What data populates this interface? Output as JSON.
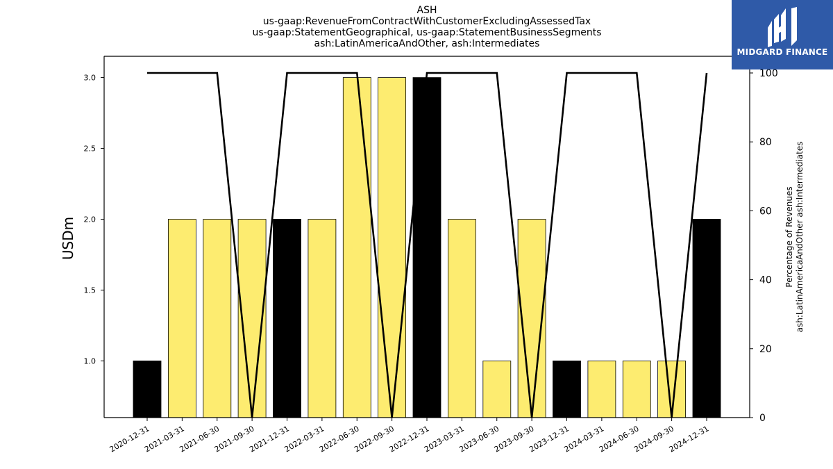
{
  "title_lines": [
    "ASH",
    "us-gaap:RevenueFromContractWithCustomerExcludingAssessedTax",
    "us-gaap:StatementGeographical, us-gaap:StatementBusinessSegments",
    "ash:LatinAmericaAndOther, ash:Intermediates"
  ],
  "brand": {
    "name": "MIDGARD FINANCE",
    "color": "#2f5aa8"
  },
  "chart_data": {
    "type": "bar",
    "categories": [
      "2020-12-31",
      "2021-03-31",
      "2021-06-30",
      "2021-09-30",
      "2021-12-31",
      "2022-03-31",
      "2022-06-30",
      "2022-09-30",
      "2022-12-31",
      "2023-03-31",
      "2023-06-30",
      "2023-09-30",
      "2023-12-31",
      "2024-03-31",
      "2024-06-30",
      "2024-09-30",
      "2024-12-31"
    ],
    "values": [
      1,
      2,
      2,
      2,
      2,
      2,
      3,
      3,
      3,
      2,
      1,
      2,
      1,
      1,
      1,
      1,
      2
    ],
    "bar_colors": [
      "#000000",
      "#fdec70",
      "#fdec70",
      "#fdec70",
      "#000000",
      "#fdec70",
      "#fdec70",
      "#fdec70",
      "#000000",
      "#fdec70",
      "#fdec70",
      "#fdec70",
      "#000000",
      "#fdec70",
      "#fdec70",
      "#fdec70",
      "#000000"
    ],
    "ylabel": "USDm",
    "ylim": [
      0.6,
      3.15
    ],
    "yticks": [
      "1.0",
      "1.5",
      "2.0",
      "2.5",
      "3.0"
    ],
    "secondary": {
      "type": "line",
      "ylabel_lines": [
        "Percentage of Revenues",
        "ash:LatinAmericaAndOther ash:Intermediates"
      ],
      "values": [
        100,
        100,
        100,
        0,
        100,
        100,
        100,
        0,
        100,
        100,
        100,
        0,
        100,
        100,
        100,
        0,
        100
      ],
      "ylim": [
        0,
        100
      ],
      "yticks": [
        "0",
        "20",
        "40",
        "60",
        "80",
        "100"
      ],
      "color": "#000000"
    },
    "grid": false,
    "legend": "none"
  }
}
